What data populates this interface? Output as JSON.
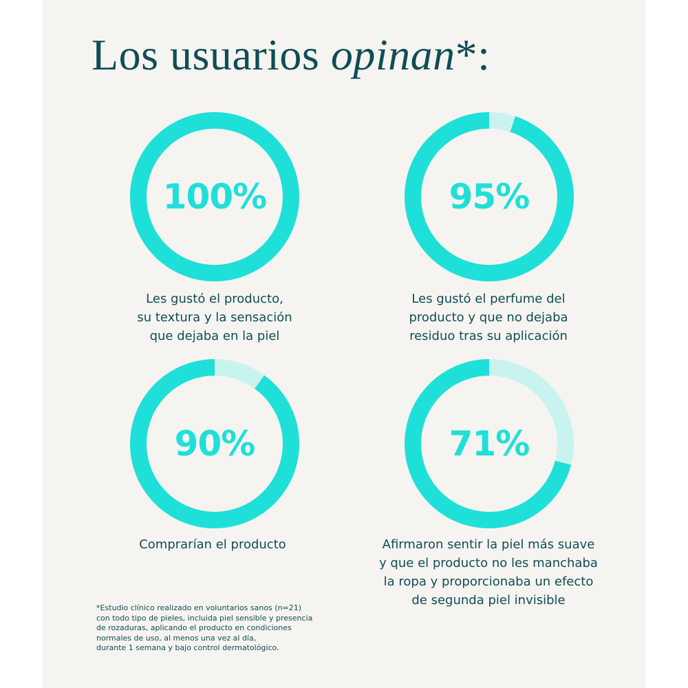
{
  "title": {
    "main": "Los usuarios ",
    "emphasis": "opinan",
    "suffix": "*:"
  },
  "colors": {
    "ring": "#1ee0d8",
    "track": "#c9f3ef",
    "text": "#0e4d57",
    "panel": "#f6f4f0"
  },
  "chart_data": {
    "type": "pie",
    "items": [
      {
        "value": 100,
        "label": "100%",
        "caption": [
          "Les gustó el producto,",
          "su textura y la sensación",
          "que dejaba en la piel"
        ]
      },
      {
        "value": 95,
        "label": "95%",
        "caption": [
          "Les gustó el perfume del",
          "producto y que no dejaba",
          "residuo tras su aplicación"
        ]
      },
      {
        "value": 90,
        "label": "90%",
        "caption": [
          "Comprarían el producto"
        ]
      },
      {
        "value": 71,
        "label": "71%",
        "caption": [
          "Afirmaron sentir la piel más suave",
          "y que el producto no les manchaba",
          "la ropa y proporcionaba un efecto",
          "de segunda piel invisible"
        ]
      }
    ]
  },
  "footnote": [
    "*Estudio clínico realizado en voluntarios sanos (n=21)",
    "con todo tipo de pieles, incluida piel sensible y presencia",
    "de rozaduras, aplicando el producto en condiciones",
    "normales de uso, al menos una vez al día,",
    "durante 1 semana y bajo control dermatológico."
  ]
}
